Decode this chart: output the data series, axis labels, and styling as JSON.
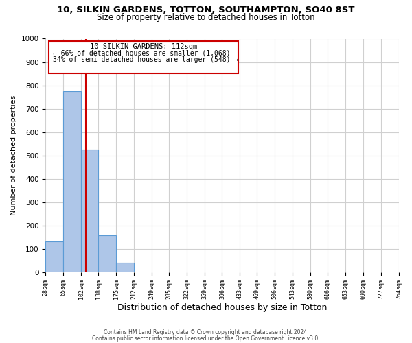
{
  "title": "10, SILKIN GARDENS, TOTTON, SOUTHAMPTON, SO40 8ST",
  "subtitle": "Size of property relative to detached houses in Totton",
  "xlabel": "Distribution of detached houses by size in Totton",
  "ylabel": "Number of detached properties",
  "bar_edges": [
    28,
    65,
    102,
    138,
    175,
    212,
    249,
    285,
    322,
    359,
    396,
    433,
    469,
    506,
    543,
    580,
    616,
    653,
    690,
    727,
    764
  ],
  "bar_heights": [
    130,
    775,
    525,
    157,
    40,
    0,
    0,
    0,
    0,
    0,
    0,
    0,
    0,
    0,
    0,
    0,
    0,
    0,
    0,
    0
  ],
  "bar_color": "#aec6e8",
  "bar_edge_color": "#5b9bd5",
  "marker_x": 112,
  "marker_color": "#cc0000",
  "ylim": [
    0,
    1000
  ],
  "xlim": [
    28,
    764
  ],
  "annotation_title": "10 SILKIN GARDENS: 112sqm",
  "annotation_line1": "← 66% of detached houses are smaller (1,068)",
  "annotation_line2": "34% of semi-detached houses are larger (548) →",
  "annotation_box_color": "#cc0000",
  "footer1": "Contains HM Land Registry data © Crown copyright and database right 2024.",
  "footer2": "Contains public sector information licensed under the Open Government Licence v3.0.",
  "tick_labels": [
    "28sqm",
    "65sqm",
    "102sqm",
    "138sqm",
    "175sqm",
    "212sqm",
    "249sqm",
    "285sqm",
    "322sqm",
    "359sqm",
    "396sqm",
    "433sqm",
    "469sqm",
    "506sqm",
    "543sqm",
    "580sqm",
    "616sqm",
    "653sqm",
    "690sqm",
    "727sqm",
    "764sqm"
  ],
  "background_color": "#ffffff",
  "grid_color": "#d0d0d0"
}
